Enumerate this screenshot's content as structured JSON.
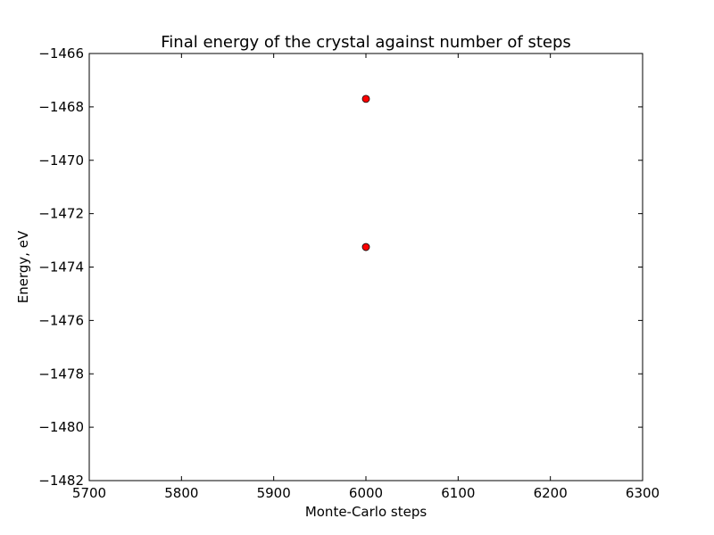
{
  "chart_data": {
    "type": "scatter",
    "title": "Final energy of the crystal against number of steps",
    "xlabel": "Monte-Carlo steps",
    "ylabel": "Energy, eV",
    "xlim": [
      5700,
      6300
    ],
    "ylim": [
      -1482,
      -1466
    ],
    "x_ticks": [
      5700,
      5800,
      5900,
      6000,
      6100,
      6200,
      6300
    ],
    "x_tick_labels": [
      "5700",
      "5800",
      "5900",
      "6000",
      "6100",
      "6200",
      "6300"
    ],
    "y_ticks": [
      -1466,
      -1468,
      -1470,
      -1472,
      -1474,
      -1476,
      -1478,
      -1480,
      -1482
    ],
    "y_tick_labels": [
      "−1466",
      "−1468",
      "−1470",
      "−1472",
      "−1474",
      "−1476",
      "−1478",
      "−1480",
      "−1482"
    ],
    "grid": false,
    "legend": "none",
    "marker_color": "#ff0000",
    "marker_edge_color": "#000000",
    "points": [
      {
        "x": 6000,
        "y": -1467.7
      },
      {
        "x": 6000,
        "y": -1473.25
      }
    ]
  }
}
